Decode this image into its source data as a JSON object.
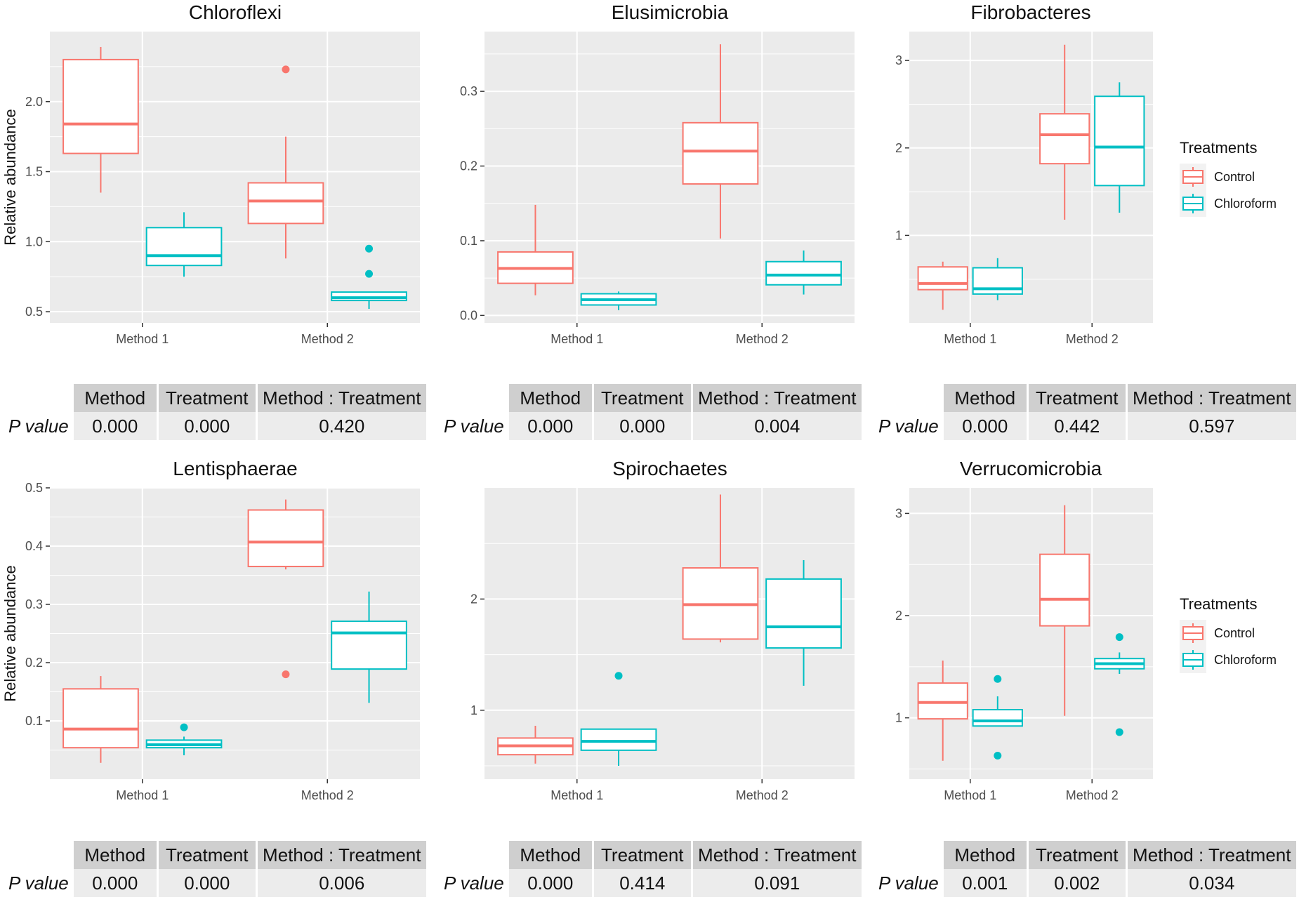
{
  "chart_data": [
    {
      "type": "box",
      "title": "Chloroflexi",
      "ylabel": "Relative abundance",
      "xlabel": "",
      "categories": [
        "Method 1",
        "Method 2"
      ],
      "ylim": [
        0.42,
        2.5
      ],
      "yticks": [
        0.5,
        1.0,
        1.5,
        2.0
      ],
      "ytick_labels": [
        "0.5",
        "1.0",
        "1.5",
        "2.0"
      ],
      "series": [
        {
          "name": "Control",
          "color": "#F8766D",
          "boxes": [
            {
              "category": "Method 1",
              "min": 1.35,
              "q1": 1.63,
              "median": 1.84,
              "q3": 2.3,
              "max": 2.39,
              "outliers": []
            },
            {
              "category": "Method 2",
              "min": 0.88,
              "q1": 1.13,
              "median": 1.29,
              "q3": 1.42,
              "max": 1.75,
              "outliers": [
                2.23
              ]
            }
          ]
        },
        {
          "name": "Chloroform",
          "color": "#00BFC4",
          "boxes": [
            {
              "category": "Method 1",
              "min": 0.75,
              "q1": 0.83,
              "median": 0.9,
              "q3": 1.1,
              "max": 1.21,
              "outliers": []
            },
            {
              "category": "Method 2",
              "min": 0.52,
              "q1": 0.58,
              "median": 0.6,
              "q3": 0.64,
              "max": 0.64,
              "outliers": [
                0.77,
                0.95
              ]
            }
          ]
        }
      ]
    },
    {
      "type": "box",
      "title": "Elusimicrobia",
      "ylabel": "",
      "xlabel": "",
      "categories": [
        "Method 1",
        "Method 2"
      ],
      "ylim": [
        -0.01,
        0.38
      ],
      "yticks": [
        0.0,
        0.1,
        0.2,
        0.3
      ],
      "ytick_labels": [
        "0.0",
        "0.1",
        "0.2",
        "0.3"
      ],
      "series": [
        {
          "name": "Control",
          "color": "#F8766D",
          "boxes": [
            {
              "category": "Method 1",
              "min": 0.027,
              "q1": 0.043,
              "median": 0.063,
              "q3": 0.085,
              "max": 0.148,
              "outliers": []
            },
            {
              "category": "Method 2",
              "min": 0.103,
              "q1": 0.176,
              "median": 0.22,
              "q3": 0.258,
              "max": 0.363,
              "outliers": []
            }
          ]
        },
        {
          "name": "Chloroform",
          "color": "#00BFC4",
          "boxes": [
            {
              "category": "Method 1",
              "min": 0.007,
              "q1": 0.014,
              "median": 0.021,
              "q3": 0.029,
              "max": 0.032,
              "outliers": []
            },
            {
              "category": "Method 2",
              "min": 0.028,
              "q1": 0.041,
              "median": 0.054,
              "q3": 0.072,
              "max": 0.087,
              "outliers": []
            }
          ]
        }
      ]
    },
    {
      "type": "box",
      "title": "Fibrobacteres",
      "ylabel": "",
      "xlabel": "",
      "categories": [
        "Method 1",
        "Method 2"
      ],
      "ylim": [
        0.0,
        3.33
      ],
      "yticks": [
        1,
        2,
        3
      ],
      "ytick_labels": [
        "1",
        "2",
        "3"
      ],
      "series": [
        {
          "name": "Control",
          "color": "#F8766D",
          "boxes": [
            {
              "category": "Method 1",
              "min": 0.15,
              "q1": 0.38,
              "median": 0.45,
              "q3": 0.64,
              "max": 0.7,
              "outliers": []
            },
            {
              "category": "Method 2",
              "min": 1.18,
              "q1": 1.82,
              "median": 2.15,
              "q3": 2.39,
              "max": 3.18,
              "outliers": []
            }
          ]
        },
        {
          "name": "Chloroform",
          "color": "#00BFC4",
          "boxes": [
            {
              "category": "Method 1",
              "min": 0.26,
              "q1": 0.33,
              "median": 0.39,
              "q3": 0.63,
              "max": 0.74,
              "outliers": []
            },
            {
              "category": "Method 2",
              "min": 1.26,
              "q1": 1.57,
              "median": 2.01,
              "q3": 2.59,
              "max": 2.75,
              "outliers": []
            }
          ]
        }
      ]
    },
    {
      "type": "box",
      "title": "Lentisphaerae",
      "ylabel": "Relative abundance",
      "xlabel": "",
      "categories": [
        "Method 1",
        "Method 2"
      ],
      "ylim": [
        0.0,
        0.5
      ],
      "yticks": [
        0.1,
        0.2,
        0.3,
        0.4,
        0.5
      ],
      "ytick_labels": [
        "0.1",
        "0.2",
        "0.3",
        "0.4",
        "0.5"
      ],
      "series": [
        {
          "name": "Control",
          "color": "#F8766D",
          "boxes": [
            {
              "category": "Method 1",
              "min": 0.028,
              "q1": 0.054,
              "median": 0.086,
              "q3": 0.155,
              "max": 0.177,
              "outliers": []
            },
            {
              "category": "Method 2",
              "min": 0.36,
              "q1": 0.365,
              "median": 0.407,
              "q3": 0.462,
              "max": 0.48,
              "outliers": [
                0.18
              ]
            }
          ]
        },
        {
          "name": "Chloroform",
          "color": "#00BFC4",
          "boxes": [
            {
              "category": "Method 1",
              "min": 0.041,
              "q1": 0.054,
              "median": 0.059,
              "q3": 0.067,
              "max": 0.073,
              "outliers": [
                0.089
              ]
            },
            {
              "category": "Method 2",
              "min": 0.131,
              "q1": 0.189,
              "median": 0.251,
              "q3": 0.271,
              "max": 0.322,
              "outliers": []
            }
          ]
        }
      ]
    },
    {
      "type": "box",
      "title": "Spirochaetes",
      "ylabel": "",
      "xlabel": "",
      "categories": [
        "Method 1",
        "Method 2"
      ],
      "ylim": [
        0.38,
        3.0
      ],
      "yticks": [
        1,
        2
      ],
      "ytick_labels": [
        "1",
        "2"
      ],
      "series": [
        {
          "name": "Control",
          "color": "#F8766D",
          "boxes": [
            {
              "category": "Method 1",
              "min": 0.52,
              "q1": 0.6,
              "median": 0.68,
              "q3": 0.75,
              "max": 0.86,
              "outliers": []
            },
            {
              "category": "Method 2",
              "min": 1.61,
              "q1": 1.64,
              "median": 1.95,
              "q3": 2.28,
              "max": 2.94,
              "outliers": []
            }
          ]
        },
        {
          "name": "Chloroform",
          "color": "#00BFC4",
          "boxes": [
            {
              "category": "Method 1",
              "min": 0.5,
              "q1": 0.64,
              "median": 0.72,
              "q3": 0.83,
              "max": 0.83,
              "outliers": [
                1.31
              ]
            },
            {
              "category": "Method 2",
              "min": 1.22,
              "q1": 1.56,
              "median": 1.75,
              "q3": 2.18,
              "max": 2.35,
              "outliers": []
            }
          ]
        }
      ]
    },
    {
      "type": "box",
      "title": "Verrucomicrobia",
      "ylabel": "",
      "xlabel": "",
      "categories": [
        "Method 1",
        "Method 2"
      ],
      "ylim": [
        0.4,
        3.25
      ],
      "yticks": [
        1,
        2,
        3
      ],
      "ytick_labels": [
        "1",
        "2",
        "3"
      ],
      "series": [
        {
          "name": "Control",
          "color": "#F8766D",
          "boxes": [
            {
              "category": "Method 1",
              "min": 0.58,
              "q1": 0.99,
              "median": 1.15,
              "q3": 1.34,
              "max": 1.56,
              "outliers": []
            },
            {
              "category": "Method 2",
              "min": 1.02,
              "q1": 1.9,
              "median": 2.16,
              "q3": 2.6,
              "max": 3.08,
              "outliers": []
            }
          ]
        },
        {
          "name": "Chloroform",
          "color": "#00BFC4",
          "boxes": [
            {
              "category": "Method 1",
              "min": 0.92,
              "q1": 0.92,
              "median": 0.97,
              "q3": 1.08,
              "max": 1.21,
              "outliers": [
                1.38,
                0.63
              ]
            },
            {
              "category": "Method 2",
              "min": 1.43,
              "q1": 1.48,
              "median": 1.53,
              "q3": 1.58,
              "max": 1.64,
              "outliers": [
                1.79,
                0.86
              ]
            }
          ]
        }
      ]
    }
  ],
  "legend": {
    "title": "Treatments",
    "items": [
      {
        "label": "Control",
        "color": "#F8766D"
      },
      {
        "label": "Chloroform",
        "color": "#00BFC4"
      }
    ]
  },
  "tables": [
    {
      "row_label": "P value",
      "headers": [
        "Method",
        "Treatment",
        "Method : Treatment"
      ],
      "values": [
        "0.000",
        "0.000",
        "0.420"
      ]
    },
    {
      "row_label": "P value",
      "headers": [
        "Method",
        "Treatment",
        "Method : Treatment"
      ],
      "values": [
        "0.000",
        "0.000",
        "0.004"
      ]
    },
    {
      "row_label": "P value",
      "headers": [
        "Method",
        "Treatment",
        "Method : Treatment"
      ],
      "values": [
        "0.000",
        "0.442",
        "0.597"
      ]
    },
    {
      "row_label": "P value",
      "headers": [
        "Method",
        "Treatment",
        "Method : Treatment"
      ],
      "values": [
        "0.000",
        "0.000",
        "0.006"
      ]
    },
    {
      "row_label": "P value",
      "headers": [
        "Method",
        "Treatment",
        "Method : Treatment"
      ],
      "values": [
        "0.000",
        "0.414",
        "0.091"
      ]
    },
    {
      "row_label": "P value",
      "headers": [
        "Method",
        "Treatment",
        "Method : Treatment"
      ],
      "values": [
        "0.001",
        "0.002",
        "0.034"
      ]
    }
  ]
}
